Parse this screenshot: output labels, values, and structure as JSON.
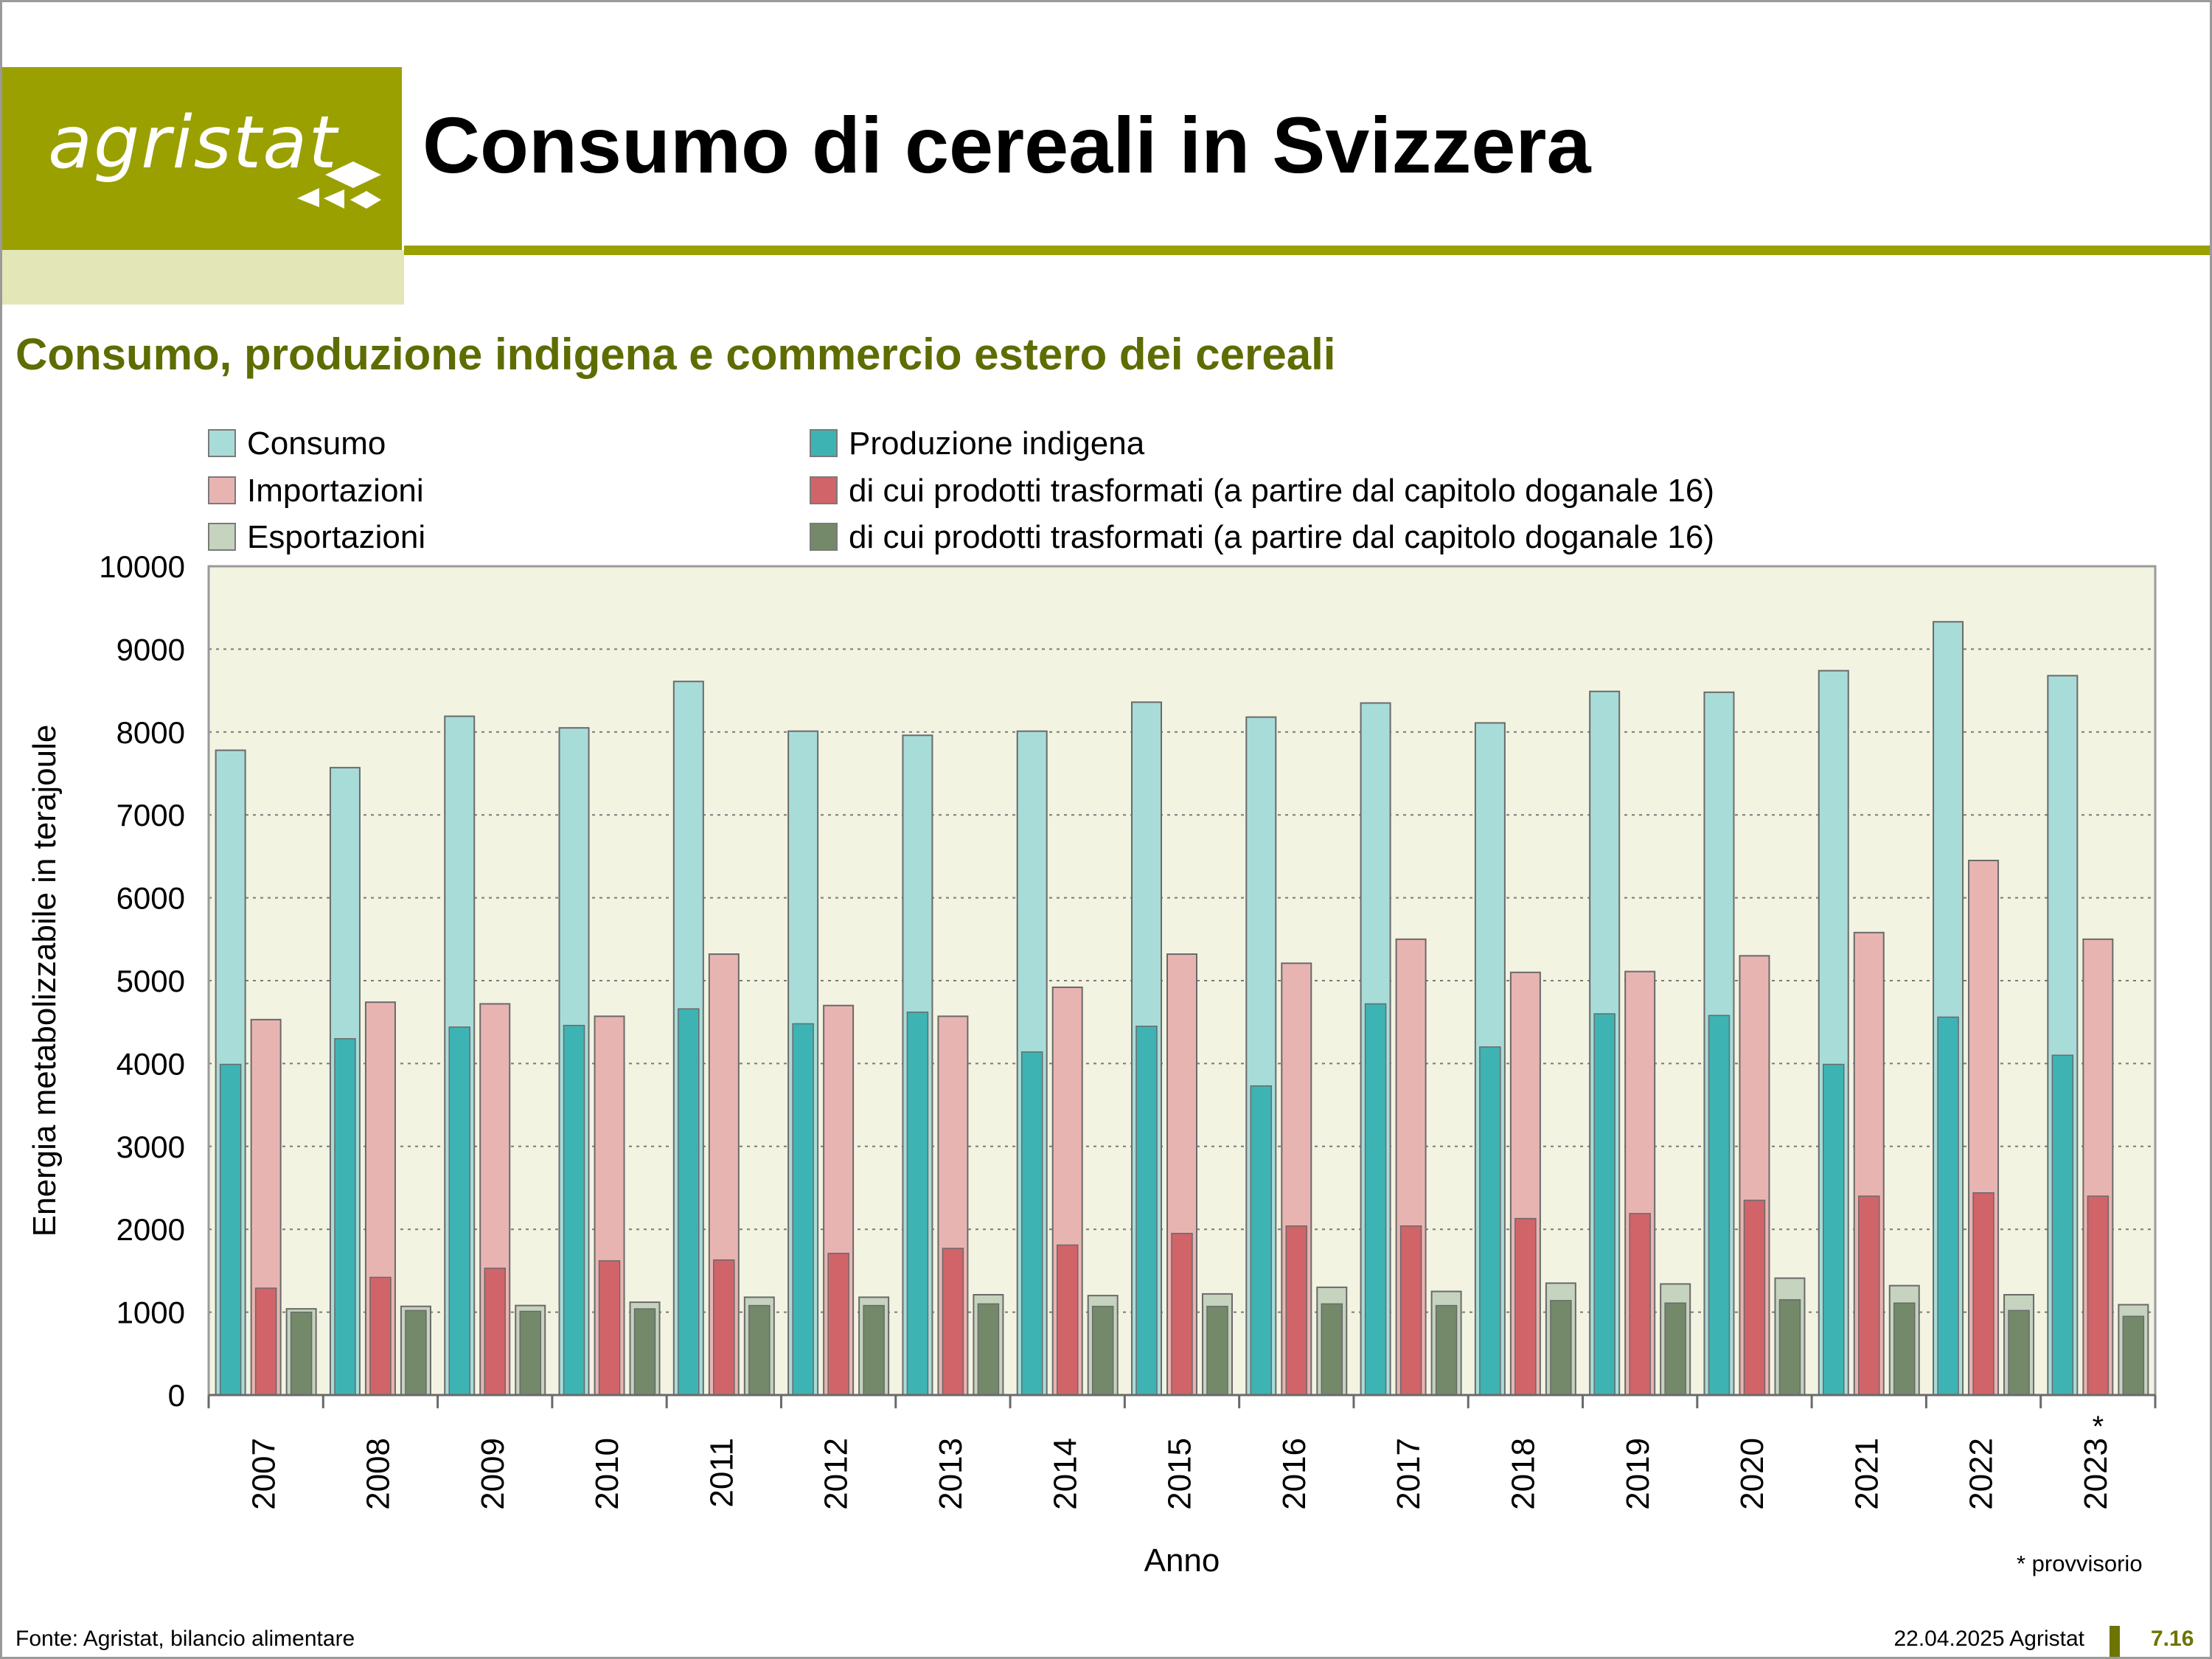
{
  "header": {
    "logo_text": "agristat",
    "title": "Consumo di cereali in Svizzera",
    "subtitle": "Consumo, produzione indigena e commercio estero dei cereali"
  },
  "colors": {
    "brand": "#9aa000",
    "brand_light": "#e3e6b6",
    "subtitle_text": "#5e6c00",
    "plot_bg": "#f3f3e2",
    "consumo": "#a8dcd9",
    "produzione": "#3eb3b3",
    "importazioni": "#e8b4b2",
    "import_trasformati": "#d06468",
    "esportazioni": "#c5d3bf",
    "export_trasformati": "#73896a"
  },
  "chart_data": {
    "type": "bar",
    "title": "",
    "xlabel": "Anno",
    "ylabel": "Energia metabolizzabile in terajoule",
    "ylim": [
      0,
      10000
    ],
    "yticks": [
      0,
      1000,
      2000,
      3000,
      4000,
      5000,
      6000,
      7000,
      8000,
      9000,
      10000
    ],
    "grid": "horizontal dotted",
    "legend_position": "top",
    "categories": [
      "2007",
      "2008",
      "2009",
      "2010",
      "2011",
      "2012",
      "2013",
      "2014",
      "2015",
      "2016",
      "2017",
      "2018",
      "2019",
      "2020",
      "2021",
      "2022",
      "2023"
    ],
    "category_marks": {
      "2023": "*"
    },
    "groups": [
      {
        "layer": "back",
        "series_name": "Consumo",
        "values": [
          7780,
          7570,
          8190,
          8050,
          8610,
          8010,
          7960,
          8010,
          8360,
          8180,
          8350,
          8110,
          8490,
          8480,
          8740,
          9330,
          8680
        ]
      },
      {
        "layer": "front",
        "series_name": "Produzione indigena",
        "values": [
          3990,
          4300,
          4440,
          4460,
          4660,
          4480,
          4620,
          4140,
          4450,
          3730,
          4720,
          4200,
          4600,
          4580,
          3990,
          4560,
          4100
        ]
      },
      {
        "layer": "back",
        "series_name": "Importazioni",
        "values": [
          4530,
          4740,
          4720,
          4570,
          5320,
          4700,
          4570,
          4920,
          5320,
          5210,
          5500,
          5100,
          5110,
          5300,
          5580,
          6450,
          5500
        ]
      },
      {
        "layer": "front",
        "series_name": "di cui prodotti trasformati (a partire dal capitolo doganale 16)",
        "values": [
          1290,
          1420,
          1530,
          1620,
          1630,
          1710,
          1770,
          1810,
          1950,
          2040,
          2040,
          2130,
          2190,
          2350,
          2400,
          2440,
          2400
        ]
      },
      {
        "layer": "back",
        "series_name": "Esportazioni",
        "values": [
          1040,
          1070,
          1080,
          1120,
          1180,
          1180,
          1210,
          1200,
          1220,
          1300,
          1250,
          1350,
          1340,
          1410,
          1320,
          1210,
          1090
        ]
      },
      {
        "layer": "front",
        "series_name": "di cui prodotti trasformati (a partire dal capitolo doganale 16)",
        "values": [
          1000,
          1020,
          1010,
          1040,
          1080,
          1080,
          1100,
          1070,
          1070,
          1100,
          1080,
          1140,
          1110,
          1150,
          1110,
          1020,
          950
        ]
      }
    ],
    "series": [
      {
        "name": "Consumo",
        "color": "#a8dcd9"
      },
      {
        "name": "Produzione indigena",
        "color": "#3eb3b3"
      },
      {
        "name": "Importazioni",
        "color": "#e8b4b2"
      },
      {
        "name": "di cui prodotti trasformati (a partire dal capitolo doganale 16)",
        "color": "#d06468"
      },
      {
        "name": "Esportazioni",
        "color": "#c5d3bf"
      },
      {
        "name": "di cui prodotti trasformati (a partire dal capitolo doganale 16)",
        "color": "#73896a"
      }
    ],
    "footnote": "* provvisorio"
  },
  "footer": {
    "source": "Fonte: Agristat, bilancio alimentare",
    "date": "22.04.2025 Agristat",
    "page": "7.16"
  }
}
